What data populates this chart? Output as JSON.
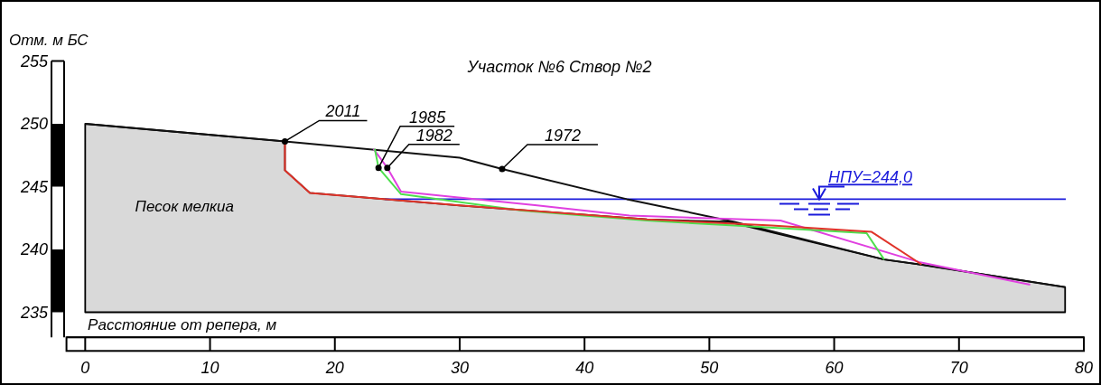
{
  "chart_data": {
    "type": "line",
    "title": "Участок №6 Створ №2",
    "xlabel": "Расстояние от репера, м",
    "ylabel": "Отм. м БС",
    "xlim": [
      -1.5,
      80
    ],
    "xticks": [
      0,
      10,
      20,
      30,
      40,
      50,
      60,
      70,
      80
    ],
    "ylim": [
      233,
      255
    ],
    "yticks": [
      235,
      240,
      245,
      250,
      255
    ],
    "grid": false,
    "legend": false,
    "marker": "none",
    "line_style": "solid",
    "annotations": [
      "Песок мелкиа"
    ],
    "ref_lines": [
      {
        "axis": "y",
        "value": 244.0,
        "label": "НПУ=244,0",
        "color": "#1a1adb"
      }
    ],
    "series": [
      {
        "type": "area",
        "color": "#d9d9d9",
        "x": [
          0,
          16,
          16,
          18,
          30,
          45,
          51.5,
          64,
          66.9,
          78.5
        ],
        "values": [
          250,
          248.6,
          246.3,
          244.5,
          243.5,
          242.4,
          242.2,
          239.2,
          238.8,
          237
        ]
      },
      {
        "name": "1972",
        "color": "#111111",
        "x": [
          0,
          16,
          30,
          33.4,
          43.4,
          52,
          64,
          66.9,
          78.5
        ],
        "values": [
          250,
          248.6,
          247.3,
          246.4,
          244.0,
          242.2,
          239.2,
          238.8,
          237
        ]
      },
      {
        "name": "1982",
        "color": "#e040e0",
        "x": [
          23.1,
          24.2,
          25.3,
          36.2,
          43.6,
          55.7,
          66.8,
          75.7
        ],
        "values": [
          248.0,
          246.5,
          244.6,
          243.5,
          242.7,
          242.3,
          239.0,
          237.2
        ]
      },
      {
        "name": "1985",
        "color": "#4ddf4d",
        "x": [
          23.2,
          23.5,
          25.3,
          35,
          45,
          52,
          62.6,
          64
        ],
        "values": [
          248.0,
          246.5,
          244.4,
          243.1,
          242.3,
          241.9,
          241.3,
          239.2
        ]
      },
      {
        "name": "2011",
        "color": "#e0342a",
        "x": [
          16,
          16,
          18,
          30,
          45,
          55,
          63,
          67
        ],
        "values": [
          248.6,
          246.3,
          244.5,
          243.5,
          242.4,
          241.9,
          241.4,
          238.8
        ]
      }
    ]
  }
}
